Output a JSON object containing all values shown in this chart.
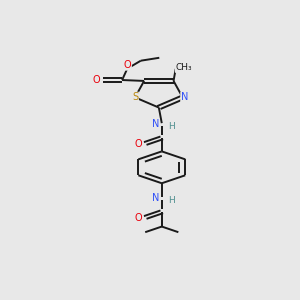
{
  "bg_color": "#e8e8e8",
  "bond_color": "#1a1a1a",
  "atom_colors": {
    "O": "#e8000b",
    "N": "#3050f8",
    "S": "#b8860b",
    "H": "#4f8f8f",
    "C": "#1a1a1a"
  },
  "fig_width": 3.0,
  "fig_height": 3.0,
  "dpi": 100,
  "lw": 1.4
}
